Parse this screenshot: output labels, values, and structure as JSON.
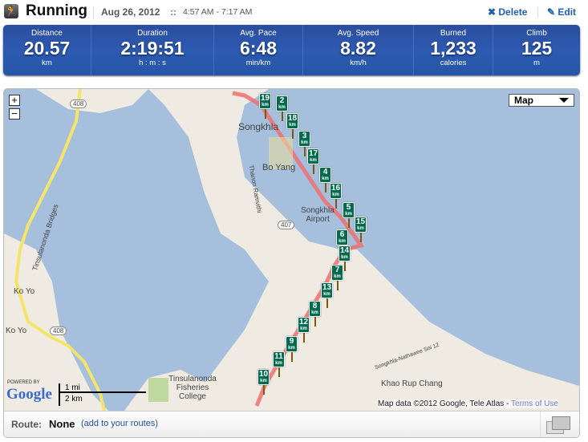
{
  "header": {
    "title": "Running",
    "date": "Aug 26, 2012",
    "separator": "::",
    "time": "4:57 AM - 7:17 AM",
    "delete_label": "Delete",
    "edit_label": "Edit",
    "icons": {
      "activity": "runner-icon",
      "delete": "x-icon",
      "edit": "pencil-icon"
    }
  },
  "stats": [
    {
      "label": "Distance",
      "value": "20.57",
      "unit": "km"
    },
    {
      "label": "Duration",
      "value": "2:19:51",
      "unit": "h : m : s"
    },
    {
      "label": "Avg. Pace",
      "value": "6:48",
      "unit": "min/km"
    },
    {
      "label": "Avg. Speed",
      "value": "8.82",
      "unit": "km/h"
    },
    {
      "label": "Burned",
      "value": "1,233",
      "unit": "calories"
    },
    {
      "label": "Climb",
      "value": "125",
      "unit": "m"
    }
  ],
  "map": {
    "type_label": "Map",
    "zoom_in": "+",
    "zoom_out": "−",
    "km_unit": "km",
    "markers": [
      "19",
      "2",
      "18",
      "3",
      "17",
      "4",
      "16",
      "5",
      "15",
      "6",
      "14",
      "7",
      "13",
      "8",
      "12",
      "9",
      "11",
      "10"
    ],
    "places": [
      "Songkhla",
      "Bo Yang",
      "Songkhla Airport",
      "Ko Yo",
      "Ko Yo",
      "Tinsulanonda Bridges",
      "Tinsulanonda Fisheries College",
      "Khao Rup Chang",
      "Thanon Ramvithi",
      "407",
      "408",
      "408",
      "Songkhla-Nathawee Soi 12"
    ],
    "scale_mi": "1 mi",
    "scale_km": "2 km",
    "powered_by": "POWERED BY",
    "google": "Google",
    "copyright": "Map data ©2012 Google, Tele Atlas -",
    "terms": "Terms of Use",
    "colors": {
      "water": "#a5bfdd",
      "land": "#efebe2",
      "route": "#f07070",
      "marker": "#006a4e"
    }
  },
  "footer": {
    "route_label": "Route:",
    "route_value": "None",
    "add_link": "(add to your routes)",
    "icons": {
      "fullscreen": "expand-icon"
    }
  }
}
